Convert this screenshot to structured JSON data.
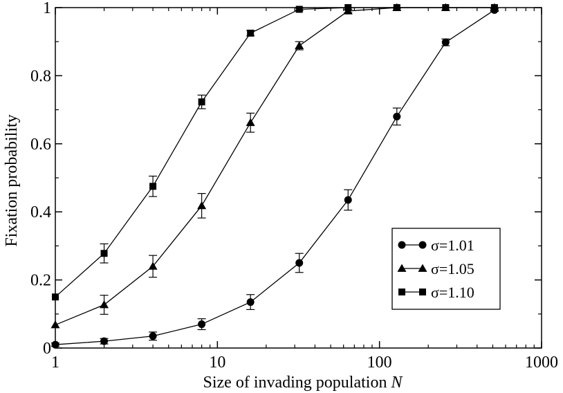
{
  "chart_data": {
    "type": "line",
    "title": "",
    "xlabel": "Size of invading population ",
    "xlabel_italic": "N",
    "ylabel": "Fixation probability",
    "xscale": "log",
    "xlim": [
      1,
      1000
    ],
    "ylim": [
      0,
      1
    ],
    "grid": false,
    "legend_position": "bottom-right",
    "xticks": [
      1,
      10,
      100,
      1000
    ],
    "xtick_labels": [
      "1",
      "10",
      "100",
      "1000"
    ],
    "yticks": [
      0,
      0.2,
      0.4,
      0.6,
      0.8,
      1
    ],
    "ytick_labels": [
      "0",
      "0.2",
      "0.4",
      "0.6",
      "0.8",
      "1"
    ],
    "x": [
      1,
      2,
      4,
      8,
      16,
      32,
      64,
      128,
      256,
      512
    ],
    "series": [
      {
        "name": "σ=1.01",
        "marker": "circle",
        "x": [
          1,
          2,
          4,
          8,
          16,
          32,
          64,
          128,
          256,
          512
        ],
        "values": [
          0.01,
          0.02,
          0.035,
          0.07,
          0.135,
          0.25,
          0.435,
          0.68,
          0.898,
          0.993
        ],
        "errors": [
          0.005,
          0.008,
          0.012,
          0.016,
          0.022,
          0.028,
          0.03,
          0.025,
          0.01,
          0.004
        ]
      },
      {
        "name": "σ=1.05",
        "marker": "triangle",
        "x": [
          1,
          2,
          4,
          8,
          16,
          32,
          64,
          128,
          256,
          512
        ],
        "values": [
          0.068,
          0.127,
          0.24,
          0.418,
          0.662,
          0.888,
          0.99,
          1.0,
          1.0,
          1.0
        ],
        "errors": [
          0.0,
          0.028,
          0.032,
          0.036,
          0.028,
          0.012,
          0.005,
          0.002,
          0.0,
          0.0
        ]
      },
      {
        "name": "σ=1.10",
        "marker": "square",
        "x": [
          1,
          2,
          4,
          8,
          16,
          32,
          64,
          128,
          256,
          512
        ],
        "values": [
          0.15,
          0.278,
          0.475,
          0.723,
          0.925,
          0.995,
          1.0,
          1.0,
          1.0,
          1.0
        ],
        "errors": [
          0.0,
          0.028,
          0.03,
          0.02,
          0.008,
          0.004,
          0.0,
          0.0,
          0.0,
          0.0
        ]
      }
    ]
  }
}
